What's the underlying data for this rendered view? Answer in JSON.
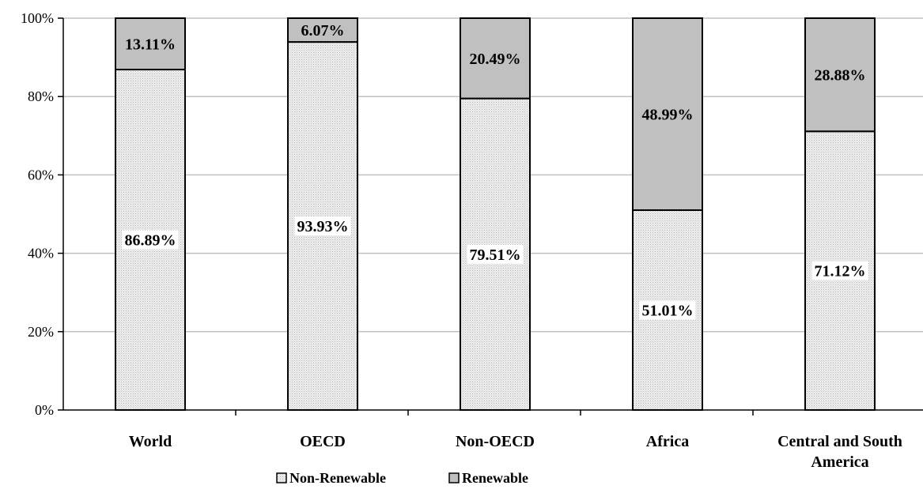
{
  "chart_data": {
    "type": "bar",
    "stacked": true,
    "percent": true,
    "categories": [
      "World",
      "OECD",
      "Non-OECD",
      "Africa",
      "Central and South America"
    ],
    "category_label_lines": [
      [
        "World"
      ],
      [
        "OECD"
      ],
      [
        "Non-OECD"
      ],
      [
        "Africa"
      ],
      [
        "Central and South",
        "America"
      ]
    ],
    "series": [
      {
        "name": "Non-Renewable",
        "values": [
          86.89,
          93.93,
          79.51,
          51.01,
          71.12
        ],
        "labels": [
          "86.89%",
          "93.93%",
          "79.51%",
          "51.01%",
          "71.12%"
        ],
        "color": "#e6e6e6"
      },
      {
        "name": "Renewable",
        "values": [
          13.11,
          6.07,
          20.49,
          48.99,
          28.88
        ],
        "labels": [
          "13.11%",
          "6.07%",
          "20.49%",
          "48.99%",
          "28.88%"
        ],
        "color": "#c0c0c0"
      }
    ],
    "ylim": [
      0,
      100
    ],
    "yticks": [
      0,
      20,
      40,
      60,
      80,
      100
    ],
    "ytick_labels": [
      "0%",
      "20%",
      "40%",
      "60%",
      "80%",
      "100%"
    ],
    "grid": true,
    "legend_position": "bottom",
    "colors": {
      "gridline": "#c0c0c0",
      "bar_stroke": "#000000"
    }
  }
}
